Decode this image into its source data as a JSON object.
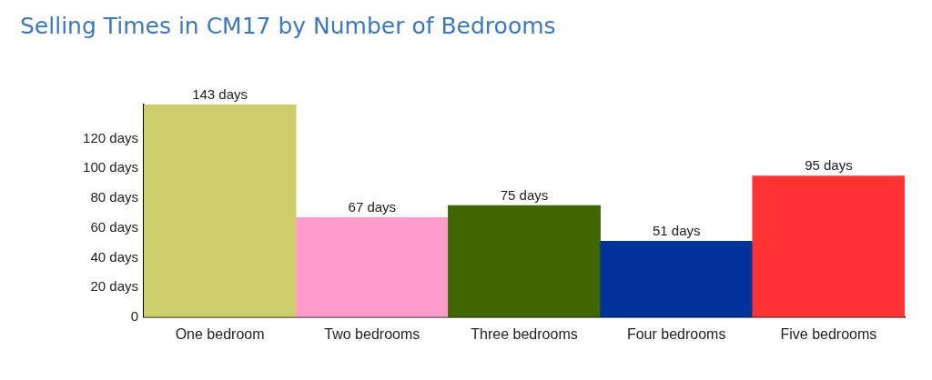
{
  "chart_data": {
    "type": "bar",
    "title": "Selling Times in CM17 by Number of Bedrooms",
    "categories": [
      "One bedroom",
      "Two bedrooms",
      "Three bedrooms",
      "Four bedrooms",
      "Five bedrooms"
    ],
    "values": [
      143,
      67,
      75,
      51,
      95
    ],
    "colors": [
      "#cdcd6a",
      "#ff9ccc",
      "#3f6600",
      "#003399",
      "#ff3333"
    ],
    "value_labels": [
      "143 days",
      "67 days",
      "75 days",
      "51 days",
      "95 days"
    ],
    "ylim": [
      0,
      143
    ],
    "yticks": [
      {
        "value": 0,
        "label": "0"
      },
      {
        "value": 20,
        "label": "20 days"
      },
      {
        "value": 40,
        "label": "40 days"
      },
      {
        "value": 60,
        "label": "60 days"
      },
      {
        "value": 80,
        "label": "80 days"
      },
      {
        "value": 100,
        "label": "100 days"
      },
      {
        "value": 120,
        "label": "120 days"
      }
    ],
    "grid": false,
    "legend": false
  }
}
